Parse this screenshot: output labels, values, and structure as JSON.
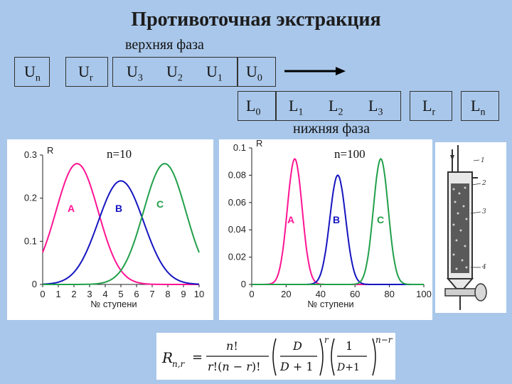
{
  "title": "Противоточная экстракция",
  "upper_phase_label": "верхняя фаза",
  "lower_phase_label": "нижняя фаза",
  "upper_cells": [
    {
      "base": "U",
      "sub": "n"
    },
    {
      "base": "U",
      "sub": "r"
    },
    {
      "base": "U",
      "sub": "3"
    },
    {
      "base": "U",
      "sub": "2"
    },
    {
      "base": "U",
      "sub": "1"
    },
    {
      "base": "U",
      "sub": "0"
    }
  ],
  "lower_cells": [
    {
      "base": "L",
      "sub": "0"
    },
    {
      "base": "L",
      "sub": "1"
    },
    {
      "base": "L",
      "sub": "2"
    },
    {
      "base": "L",
      "sub": "3"
    },
    {
      "base": "L",
      "sub": "r"
    },
    {
      "base": "L",
      "sub": "n"
    }
  ],
  "colors": {
    "A": "#ff1493",
    "B": "#1515c0",
    "C": "#21a04a",
    "background": "#a9c7ea"
  },
  "chart_data": [
    {
      "type": "line",
      "annotation": "n=10",
      "ylabel": "R",
      "xlabel": "№ ступени",
      "xlim": [
        0,
        10
      ],
      "ylim": [
        0,
        0.3
      ],
      "x_ticks": [
        "0",
        "1",
        "2",
        "3",
        "4",
        "5",
        "6",
        "7",
        "8",
        "9",
        "10"
      ],
      "y_ticks": [
        "0",
        "0.1",
        "0.2",
        "0.3"
      ],
      "n": 10,
      "series": [
        {
          "name": "A",
          "center": 2.2,
          "sigma": 1.35,
          "peak": 0.28
        },
        {
          "name": "B",
          "center": 5.0,
          "sigma": 1.45,
          "peak": 0.24
        },
        {
          "name": "C",
          "center": 7.8,
          "sigma": 1.35,
          "peak": 0.28
        }
      ]
    },
    {
      "type": "line",
      "annotation": "n=100",
      "ylabel": "R",
      "xlabel": "№ ступени",
      "xlim": [
        0,
        100
      ],
      "ylim": [
        0,
        0.1
      ],
      "x_ticks": [
        "0",
        "20",
        "40",
        "60",
        "80",
        "100"
      ],
      "y_ticks": [
        "0",
        "0.02",
        "0.04",
        "0.06",
        "0.08",
        "0.1"
      ],
      "n": 100,
      "series": [
        {
          "name": "A",
          "center": 25,
          "sigma": 4.3,
          "peak": 0.092
        },
        {
          "name": "B",
          "center": 50,
          "sigma": 4.6,
          "peak": 0.08
        },
        {
          "name": "C",
          "center": 75,
          "sigma": 4.3,
          "peak": 0.092
        }
      ]
    }
  ]
}
